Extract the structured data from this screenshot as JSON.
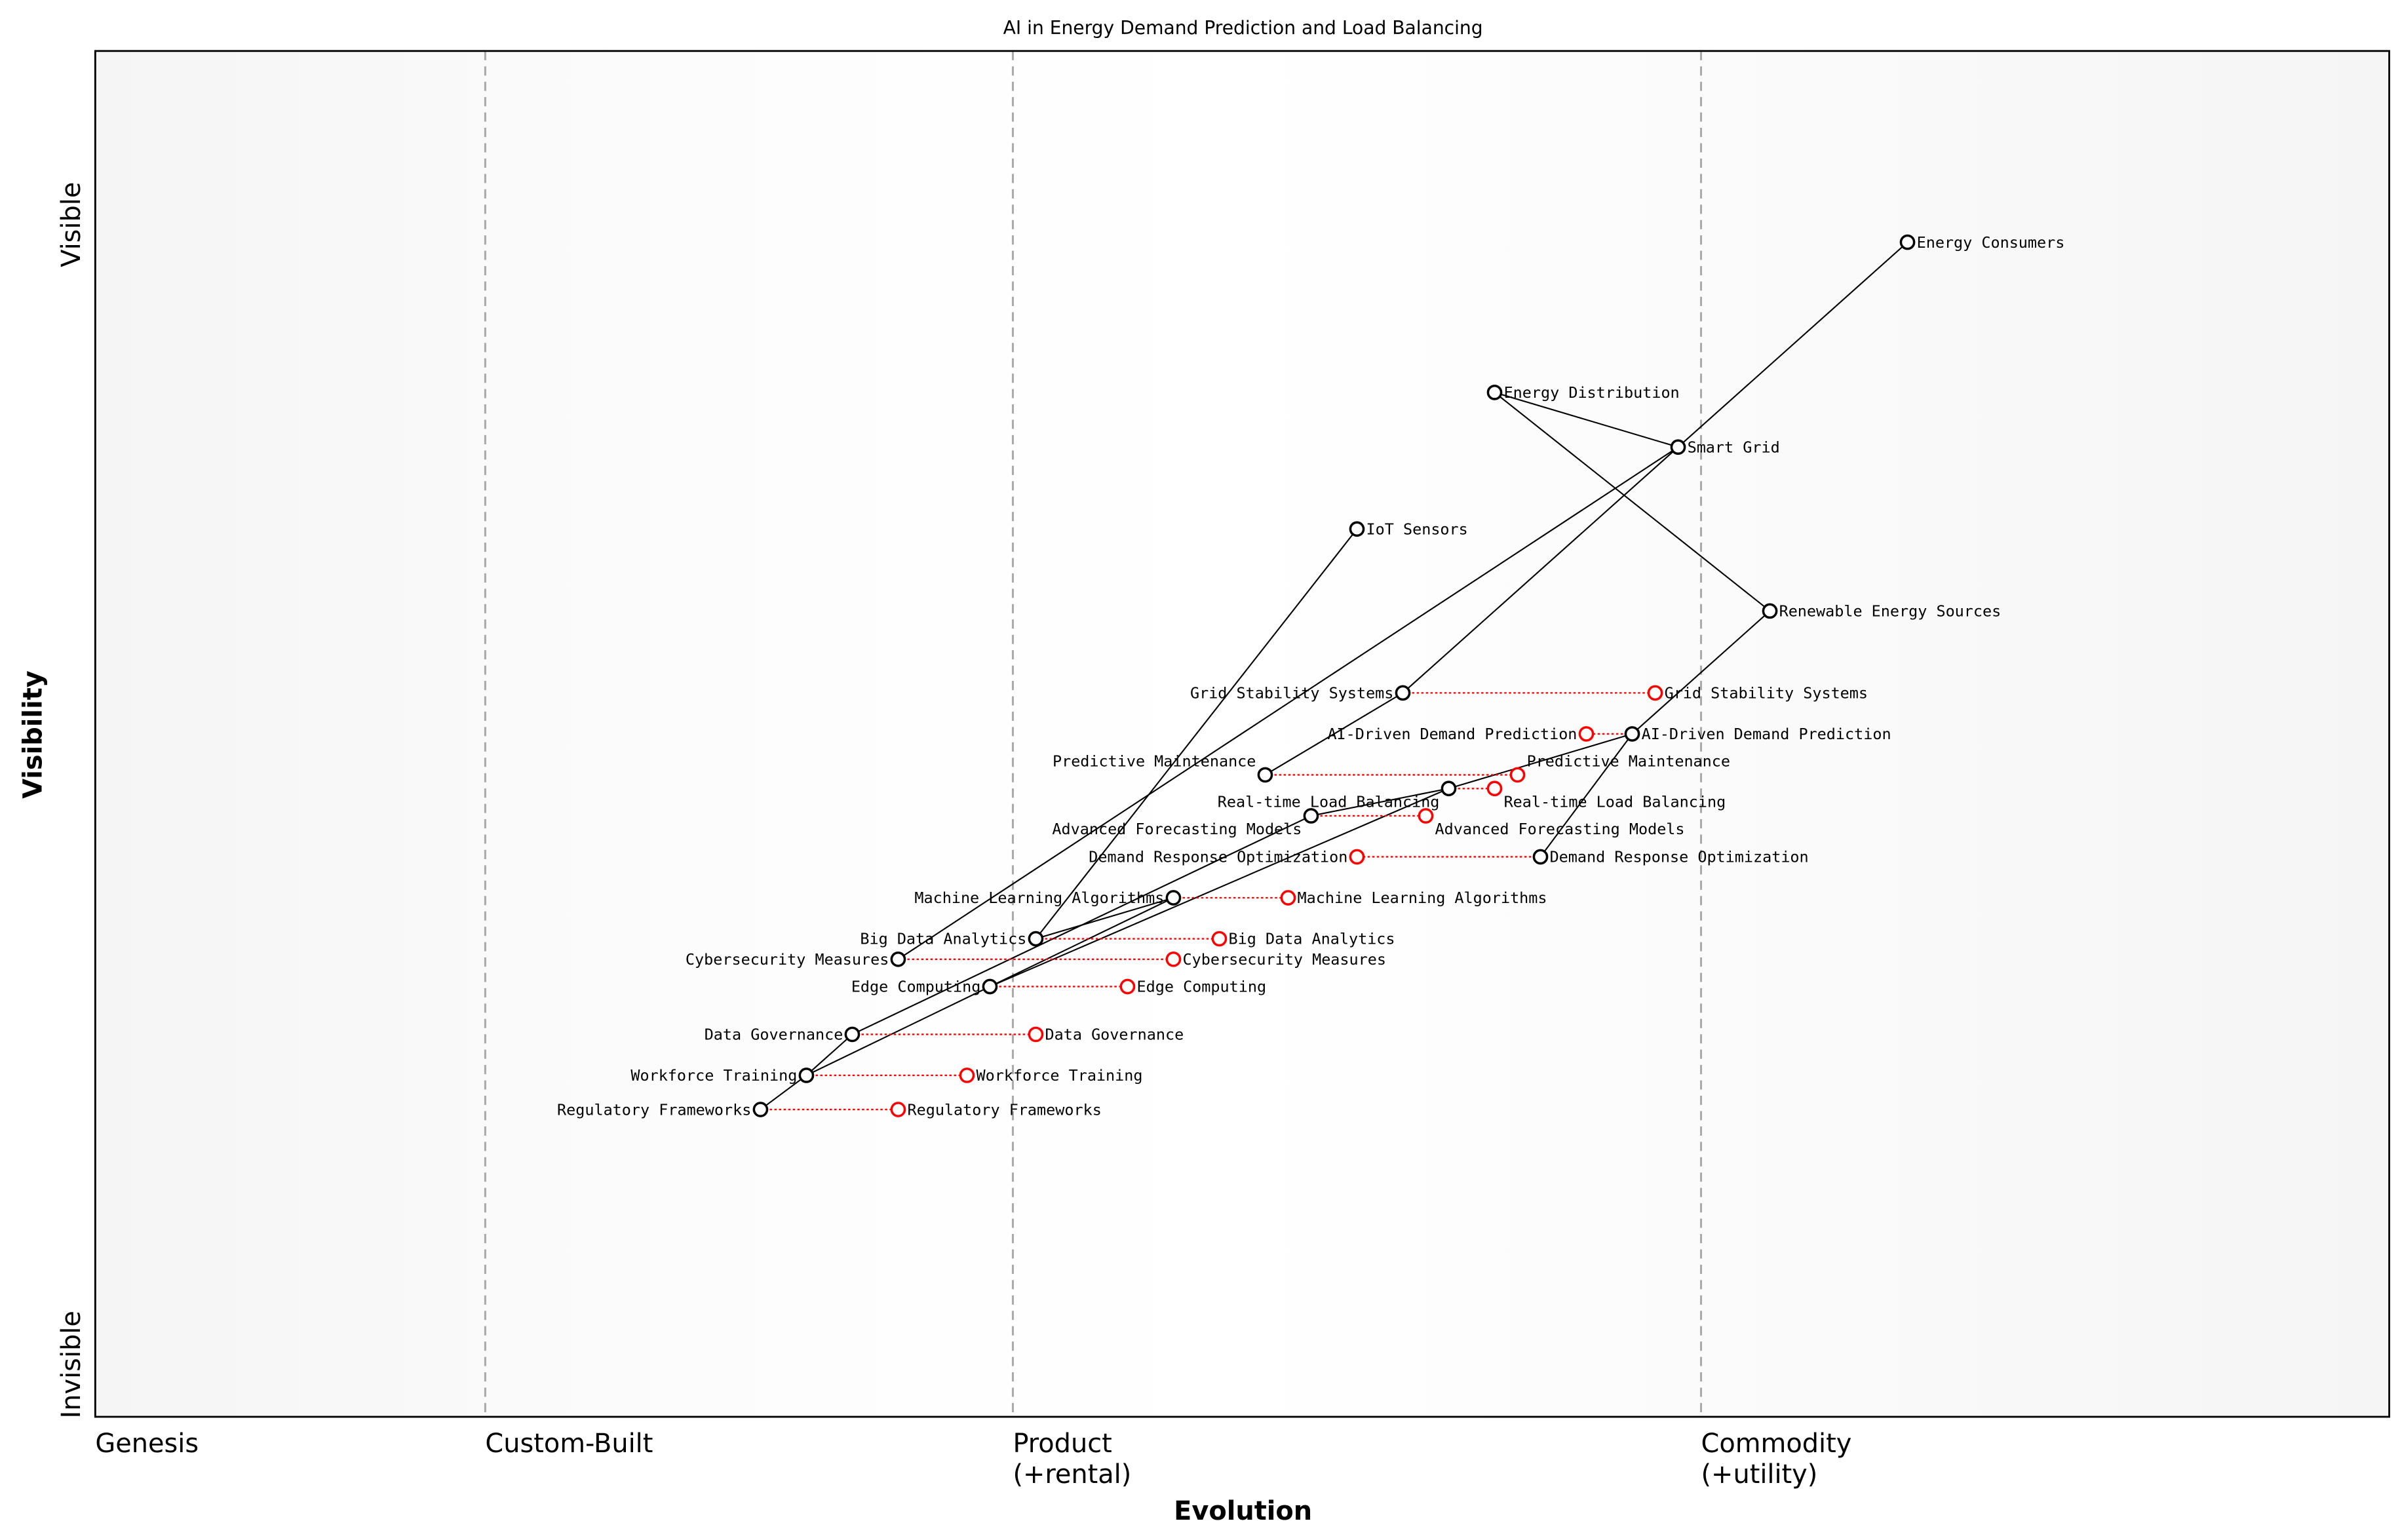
{
  "title": "AI in Energy Demand Prediction and Load Balancing",
  "chart_data": {
    "type": "wardley-map",
    "title": "AI in Energy Demand Prediction and Load Balancing",
    "xlabel": "Evolution",
    "ylabel": "Visibility",
    "xlim": [
      0,
      1
    ],
    "ylim": [
      0,
      1
    ],
    "x_stages": [
      {
        "label": "Genesis",
        "sub": "",
        "at": 0.0
      },
      {
        "label": "Custom-Built",
        "sub": "",
        "at": 0.17
      },
      {
        "label": "Product",
        "sub": "(+rental)",
        "at": 0.4
      },
      {
        "label": "Commodity",
        "sub": "(+utility)",
        "at": 0.7
      }
    ],
    "y_labels": {
      "top": "Visible",
      "bottom": "Invisible"
    },
    "colors": {
      "component": "#000000",
      "evolved": "#ff0000",
      "stage_line": "#aaaaaa",
      "band": "#f5f5f5"
    },
    "components": [
      {
        "name": "Energy Consumers",
        "evolution": 0.79,
        "visibility": 0.86
      },
      {
        "name": "Energy Distribution",
        "evolution": 0.61,
        "visibility": 0.75
      },
      {
        "name": "Smart Grid",
        "evolution": 0.69,
        "visibility": 0.71
      },
      {
        "name": "IoT Sensors",
        "evolution": 0.55,
        "visibility": 0.65
      },
      {
        "name": "Renewable Energy Sources",
        "evolution": 0.73,
        "visibility": 0.59
      },
      {
        "name": "Grid Stability Systems",
        "evolution": 0.57,
        "visibility": 0.53,
        "evolved_to": 0.68
      },
      {
        "name": "AI-Driven Demand Prediction",
        "evolution": 0.67,
        "visibility": 0.5,
        "evolved_to": 0.65
      },
      {
        "name": "Predictive Maintenance",
        "evolution": 0.51,
        "visibility": 0.47,
        "evolved_to": 0.62
      },
      {
        "name": "Real-time Load Balancing",
        "evolution": 0.59,
        "visibility": 0.46,
        "evolved_to": 0.61
      },
      {
        "name": "Advanced Forecasting Models",
        "evolution": 0.53,
        "visibility": 0.44,
        "evolved_to": 0.58
      },
      {
        "name": "Demand Response Optimization",
        "evolution": 0.63,
        "visibility": 0.41,
        "evolved_to": 0.55
      },
      {
        "name": "Machine Learning Algorithms",
        "evolution": 0.47,
        "visibility": 0.38,
        "evolved_to": 0.52
      },
      {
        "name": "Big Data Analytics",
        "evolution": 0.41,
        "visibility": 0.35,
        "evolved_to": 0.49
      },
      {
        "name": "Cybersecurity Measures",
        "evolution": 0.35,
        "visibility": 0.335,
        "evolved_to": 0.47
      },
      {
        "name": "Edge Computing",
        "evolution": 0.39,
        "visibility": 0.315,
        "evolved_to": 0.45
      },
      {
        "name": "Data Governance",
        "evolution": 0.33,
        "visibility": 0.28,
        "evolved_to": 0.41
      },
      {
        "name": "Workforce Training",
        "evolution": 0.31,
        "visibility": 0.25,
        "evolved_to": 0.38
      },
      {
        "name": "Regulatory Frameworks",
        "evolution": 0.29,
        "visibility": 0.225,
        "evolved_to": 0.35
      }
    ],
    "links": [
      [
        "Energy Consumers",
        "Smart Grid"
      ],
      [
        "Energy Distribution",
        "Smart Grid"
      ],
      [
        "Energy Distribution",
        "Renewable Energy Sources"
      ],
      [
        "Smart Grid",
        "Grid Stability Systems"
      ],
      [
        "Smart Grid",
        "Cybersecurity Measures"
      ],
      [
        "IoT Sensors",
        "Big Data Analytics"
      ],
      [
        "Renewable Energy Sources",
        "AI-Driven Demand Prediction"
      ],
      [
        "AI-Driven Demand Prediction",
        "Real-time Load Balancing"
      ],
      [
        "AI-Driven Demand Prediction",
        "Demand Response Optimization"
      ],
      [
        "Grid Stability Systems",
        "Predictive Maintenance"
      ],
      [
        "Real-time Load Balancing",
        "Advanced Forecasting Models"
      ],
      [
        "Real-time Load Balancing",
        "Edge Computing"
      ],
      [
        "Advanced Forecasting Models",
        "Data Governance"
      ],
      [
        "Machine Learning Algorithms",
        "Big Data Analytics"
      ],
      [
        "Machine Learning Algorithms",
        "Edge Computing"
      ],
      [
        "Edge Computing",
        "Workforce Training"
      ],
      [
        "Workforce Training",
        "Data Governance"
      ],
      [
        "Regulatory Frameworks",
        "Workforce Training"
      ]
    ]
  }
}
